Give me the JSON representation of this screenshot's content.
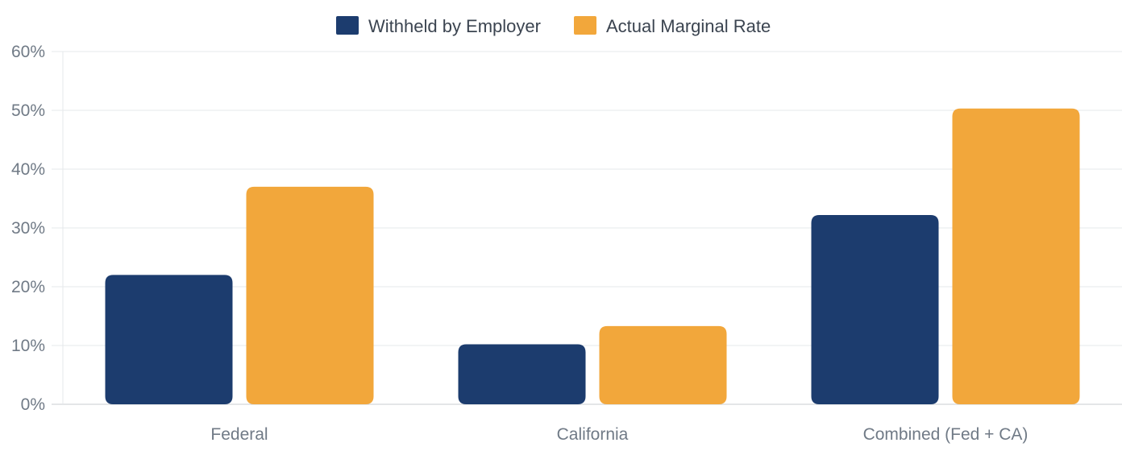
{
  "chart_data": {
    "type": "bar",
    "categories": [
      "Federal",
      "California",
      "Combined (Fed + CA)"
    ],
    "series": [
      {
        "name": "Withheld by Employer",
        "values": [
          22,
          10.2,
          32.2
        ],
        "color": "#1c3c6e"
      },
      {
        "name": "Actual Marginal Rate",
        "values": [
          37,
          13.3,
          50.3
        ],
        "color": "#f2a73b"
      }
    ],
    "yticks": [
      "0%",
      "10%",
      "20%",
      "30%",
      "40%",
      "50%",
      "60%"
    ],
    "ylim": [
      0,
      60
    ],
    "grid": true,
    "legend_position": "top-center"
  }
}
